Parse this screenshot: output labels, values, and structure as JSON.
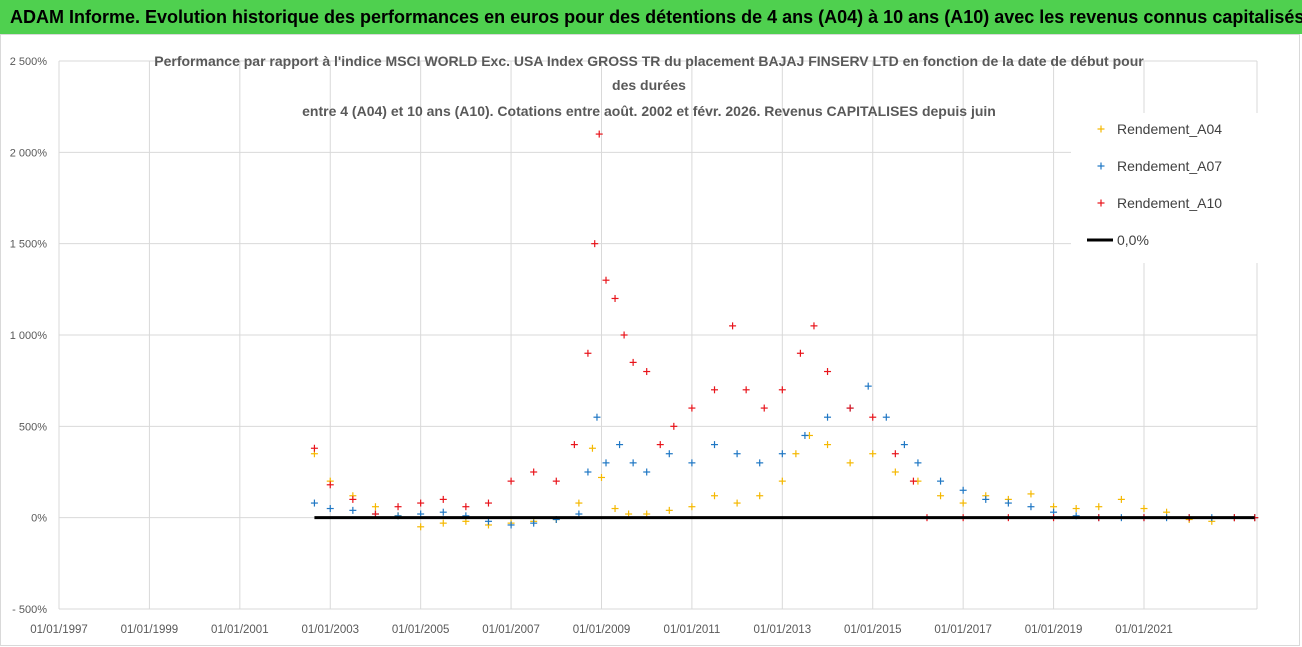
{
  "header": {
    "title": "ADAM Informe. Evolution historique des performances en euros pour des détentions de 4 ans (A04) à 10 ans (A10) avec les revenus connus capitalisés"
  },
  "chart_data": {
    "type": "scatter",
    "title_lines": [
      "Performance par rapport à l'indice MSCI WORLD Exc. USA Index GROSS TR  du placement BAJAJ FINSERV LTD en fonction de la date de début pour",
      "des durées",
      "entre 4 (A04) et 10 ans (A10).  Cotations entre août. 2002 et févr. 2026. Revenus CAPITALISES depuis juin"
    ],
    "xlabel": "",
    "ylabel": "",
    "ylim": [
      -500,
      2500
    ],
    "xlim": [
      1997.0,
      2023.5
    ],
    "y_ticks": [
      -500,
      0,
      500,
      1000,
      1500,
      2000,
      2500
    ],
    "y_tick_labels": [
      "- 500%",
      "0%",
      "500%",
      "1 000%",
      "1 500%",
      "2 000%",
      "2 500%"
    ],
    "x_ticks": [
      1997,
      1999,
      2001,
      2003,
      2005,
      2007,
      2009,
      2011,
      2013,
      2015,
      2017,
      2019,
      2021
    ],
    "x_tick_labels": [
      "01/01/1997",
      "01/01/1999",
      "01/01/2001",
      "01/01/2003",
      "01/01/2005",
      "01/01/2007",
      "01/01/2009",
      "01/01/2011",
      "01/01/2013",
      "01/01/2015",
      "01/01/2017",
      "01/01/2019",
      "01/01/2021"
    ],
    "legend_position": "top-right",
    "series": [
      {
        "name": "Rendement_A04",
        "color": "#f5b800",
        "marker": "+",
        "points": [
          [
            2002.65,
            350
          ],
          [
            2003.0,
            200
          ],
          [
            2003.5,
            120
          ],
          [
            2004.0,
            60
          ],
          [
            2004.5,
            10
          ],
          [
            2005.0,
            -50
          ],
          [
            2005.5,
            -30
          ],
          [
            2006.0,
            -20
          ],
          [
            2006.5,
            -40
          ],
          [
            2007.0,
            -30
          ],
          [
            2007.5,
            -20
          ],
          [
            2008.0,
            -10
          ],
          [
            2008.5,
            80
          ],
          [
            2008.8,
            380
          ],
          [
            2009.0,
            220
          ],
          [
            2009.3,
            50
          ],
          [
            2009.6,
            20
          ],
          [
            2010.0,
            20
          ],
          [
            2010.5,
            40
          ],
          [
            2011.0,
            60
          ],
          [
            2011.5,
            120
          ],
          [
            2012.0,
            80
          ],
          [
            2012.5,
            120
          ],
          [
            2013.0,
            200
          ],
          [
            2013.3,
            350
          ],
          [
            2013.6,
            450
          ],
          [
            2014.0,
            400
          ],
          [
            2014.5,
            300
          ],
          [
            2015.0,
            350
          ],
          [
            2015.5,
            250
          ],
          [
            2016.0,
            200
          ],
          [
            2016.5,
            120
          ],
          [
            2017.0,
            80
          ],
          [
            2017.5,
            120
          ],
          [
            2018.0,
            100
          ],
          [
            2018.5,
            130
          ],
          [
            2019.0,
            60
          ],
          [
            2019.5,
            50
          ],
          [
            2020.0,
            60
          ],
          [
            2020.5,
            100
          ],
          [
            2021.0,
            50
          ],
          [
            2021.5,
            30
          ],
          [
            2022.0,
            -10
          ],
          [
            2022.5,
            -20
          ],
          [
            2023.0,
            0
          ],
          [
            2023.45,
            0
          ]
        ]
      },
      {
        "name": "Rendement_A07",
        "color": "#1f77c4",
        "marker": "+",
        "points": [
          [
            2002.65,
            80
          ],
          [
            2003.0,
            50
          ],
          [
            2003.5,
            40
          ],
          [
            2004.0,
            20
          ],
          [
            2004.5,
            10
          ],
          [
            2005.0,
            20
          ],
          [
            2005.5,
            30
          ],
          [
            2006.0,
            10
          ],
          [
            2006.5,
            -20
          ],
          [
            2007.0,
            -40
          ],
          [
            2007.5,
            -30
          ],
          [
            2008.0,
            -10
          ],
          [
            2008.5,
            20
          ],
          [
            2008.7,
            250
          ],
          [
            2008.9,
            550
          ],
          [
            2009.1,
            300
          ],
          [
            2009.4,
            400
          ],
          [
            2009.7,
            300
          ],
          [
            2010.0,
            250
          ],
          [
            2010.5,
            350
          ],
          [
            2011.0,
            300
          ],
          [
            2011.5,
            400
          ],
          [
            2012.0,
            350
          ],
          [
            2012.5,
            300
          ],
          [
            2013.0,
            350
          ],
          [
            2013.5,
            450
          ],
          [
            2014.0,
            550
          ],
          [
            2014.5,
            600
          ],
          [
            2014.9,
            720
          ],
          [
            2015.3,
            550
          ],
          [
            2015.7,
            400
          ],
          [
            2016.0,
            300
          ],
          [
            2016.5,
            200
          ],
          [
            2017.0,
            150
          ],
          [
            2017.5,
            100
          ],
          [
            2018.0,
            80
          ],
          [
            2018.5,
            60
          ],
          [
            2019.0,
            30
          ],
          [
            2019.5,
            10
          ],
          [
            2020.0,
            0
          ],
          [
            2020.5,
            0
          ],
          [
            2021.0,
            0
          ],
          [
            2021.5,
            0
          ],
          [
            2022.0,
            0
          ],
          [
            2022.5,
            0
          ],
          [
            2023.0,
            0
          ],
          [
            2023.45,
            0
          ]
        ]
      },
      {
        "name": "Rendement_A10",
        "color": "#e8141b",
        "marker": "+",
        "points": [
          [
            2002.65,
            380
          ],
          [
            2003.0,
            180
          ],
          [
            2003.5,
            100
          ],
          [
            2004.0,
            20
          ],
          [
            2004.5,
            60
          ],
          [
            2005.0,
            80
          ],
          [
            2005.5,
            100
          ],
          [
            2006.0,
            60
          ],
          [
            2006.5,
            80
          ],
          [
            2007.0,
            200
          ],
          [
            2007.5,
            250
          ],
          [
            2008.0,
            200
          ],
          [
            2008.4,
            400
          ],
          [
            2008.7,
            900
          ],
          [
            2008.85,
            1500
          ],
          [
            2008.95,
            2100
          ],
          [
            2009.1,
            1300
          ],
          [
            2009.3,
            1200
          ],
          [
            2009.5,
            1000
          ],
          [
            2009.7,
            850
          ],
          [
            2010.0,
            800
          ],
          [
            2010.3,
            400
          ],
          [
            2010.6,
            500
          ],
          [
            2011.0,
            600
          ],
          [
            2011.5,
            700
          ],
          [
            2011.9,
            1050
          ],
          [
            2012.2,
            700
          ],
          [
            2012.6,
            600
          ],
          [
            2013.0,
            700
          ],
          [
            2013.4,
            900
          ],
          [
            2013.7,
            1050
          ],
          [
            2014.0,
            800
          ],
          [
            2014.5,
            600
          ],
          [
            2015.0,
            550
          ],
          [
            2015.5,
            350
          ],
          [
            2015.9,
            200
          ],
          [
            2016.2,
            0
          ],
          [
            2017.0,
            0
          ],
          [
            2018.0,
            0
          ],
          [
            2019.0,
            0
          ],
          [
            2020.0,
            0
          ],
          [
            2021.0,
            0
          ],
          [
            2022.0,
            0
          ],
          [
            2023.0,
            0
          ],
          [
            2023.45,
            0
          ]
        ]
      },
      {
        "name": "0,0%",
        "color": "#000000",
        "marker": "line",
        "points": [
          [
            2002.65,
            0
          ],
          [
            2023.45,
            0
          ]
        ]
      }
    ]
  }
}
